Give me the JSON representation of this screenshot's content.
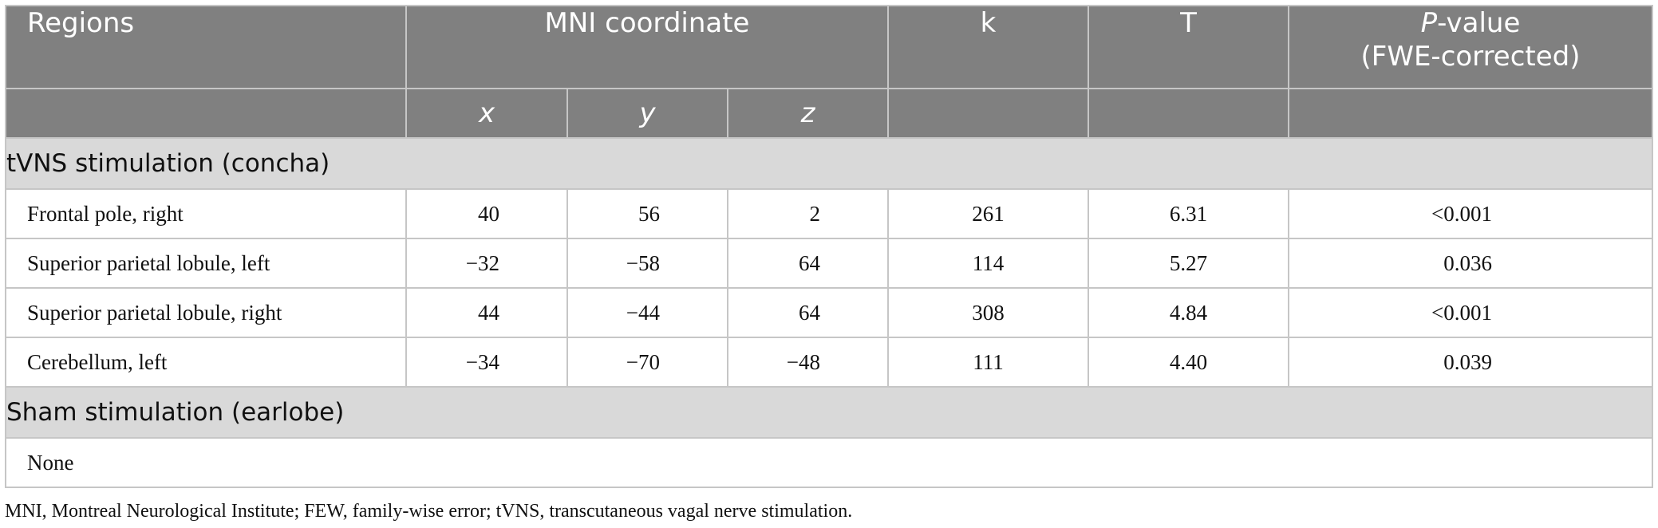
{
  "headers": {
    "regions": "Regions",
    "mni": "MNI coordinate",
    "k": "k",
    "t": "T",
    "p_italic": "P",
    "p_rest": "-value",
    "p_line2": "(FWE-corrected)",
    "x": "x",
    "y": "y",
    "z": "z"
  },
  "sections": [
    {
      "title": "tVNS stimulation (concha)",
      "rows": [
        {
          "region": "Frontal pole, right",
          "x": "40",
          "y": "56",
          "z": "2",
          "k": "261",
          "t": "6.31",
          "p": "<0.001"
        },
        {
          "region": "Superior parietal lobule, left",
          "x": "−32",
          "y": "−58",
          "z": "64",
          "k": "114",
          "t": "5.27",
          "p": "0.036"
        },
        {
          "region": "Superior parietal lobule, right",
          "x": "44",
          "y": "−44",
          "z": "64",
          "k": "308",
          "t": "4.84",
          "p": "<0.001"
        },
        {
          "region": "Cerebellum, left",
          "x": "−34",
          "y": "−70",
          "z": "−48",
          "k": "111",
          "t": "4.40",
          "p": "0.039"
        }
      ]
    },
    {
      "title": "Sham stimulation (earlobe)",
      "rows": [],
      "none_text": "None"
    }
  ],
  "footnote": "MNI, Montreal Neurological Institute; FEW, family-wise error; tVNS, transcutaneous vagal nerve stimulation."
}
